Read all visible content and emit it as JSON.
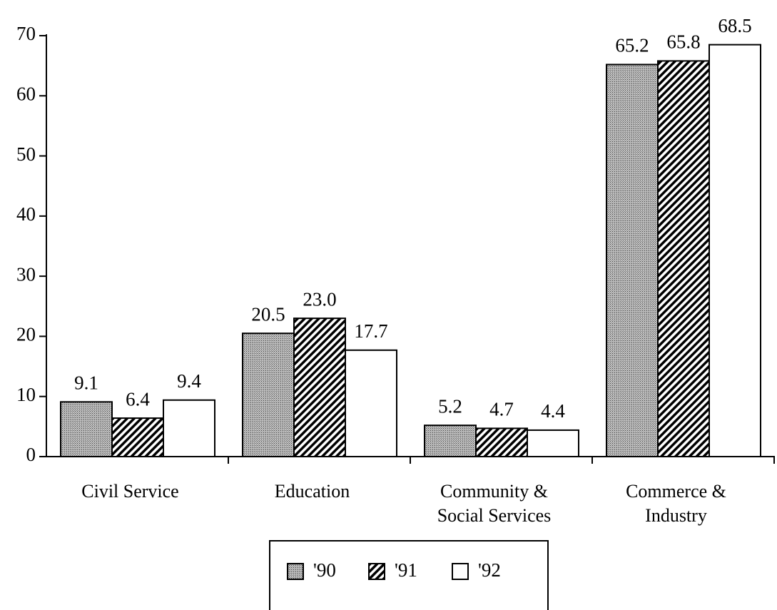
{
  "chart_data": {
    "type": "bar",
    "categories": [
      "Civil Service",
      "Education",
      "Community & Social Services",
      "Commerce & Industry"
    ],
    "series": [
      {
        "name": "'90",
        "color": "stipple",
        "values": [
          9.1,
          20.5,
          5.2,
          65.2
        ]
      },
      {
        "name": "'91",
        "color": "hatch",
        "values": [
          6.4,
          23.0,
          4.7,
          65.8
        ],
        "value_labels": [
          "6.4",
          "23.0",
          "4.7",
          "65.8"
        ]
      },
      {
        "name": "'92",
        "color": "#ffffff",
        "values": [
          9.4,
          17.7,
          4.4,
          68.5
        ]
      }
    ],
    "ylim": [
      0,
      70
    ],
    "yticks": [
      0,
      10,
      20,
      30,
      40,
      50,
      60,
      70
    ],
    "grid": false,
    "legend": "bottom"
  }
}
